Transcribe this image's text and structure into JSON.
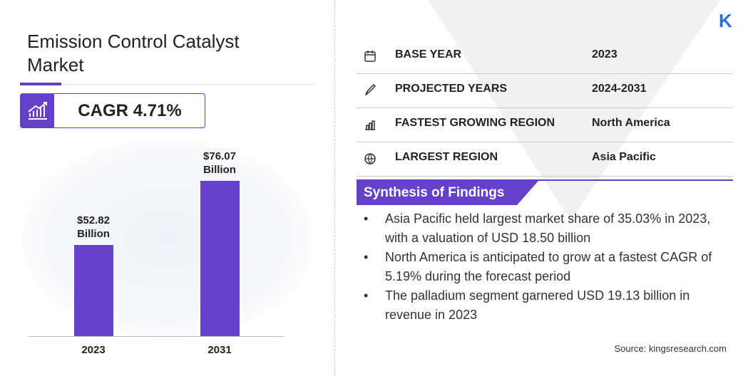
{
  "header": {
    "title": "Emission Control Catalyst Market",
    "cagr": "CAGR 4.71%"
  },
  "chart_data": {
    "type": "bar",
    "categories": [
      "2023",
      "2031"
    ],
    "values": [
      52.82,
      76.07
    ],
    "value_labels": [
      "$52.82 Billion",
      "$76.07 Billion"
    ],
    "color": "#6441c8",
    "ylim": [
      20,
      90
    ]
  },
  "info": {
    "rows": [
      {
        "label": "BASE YEAR",
        "value": "2023"
      },
      {
        "label": "PROJECTED YEARS",
        "value": "2024-2031"
      },
      {
        "label": "FASTEST GROWING REGION",
        "value": "North America"
      },
      {
        "label": "LARGEST REGION",
        "value": "Asia Pacific"
      }
    ]
  },
  "findings": {
    "title": "Synthesis of Findings",
    "items": [
      "Asia Pacific held largest market share of 35.03% in 2023, with a valuation of USD 18.50 billion",
      "North America is anticipated to grow at a fastest CAGR of 5.19% during the forecast period",
      "The palladium segment garnered USD 19.13 billion in revenue in 2023"
    ]
  },
  "source": "Source: kingsresearch.com"
}
